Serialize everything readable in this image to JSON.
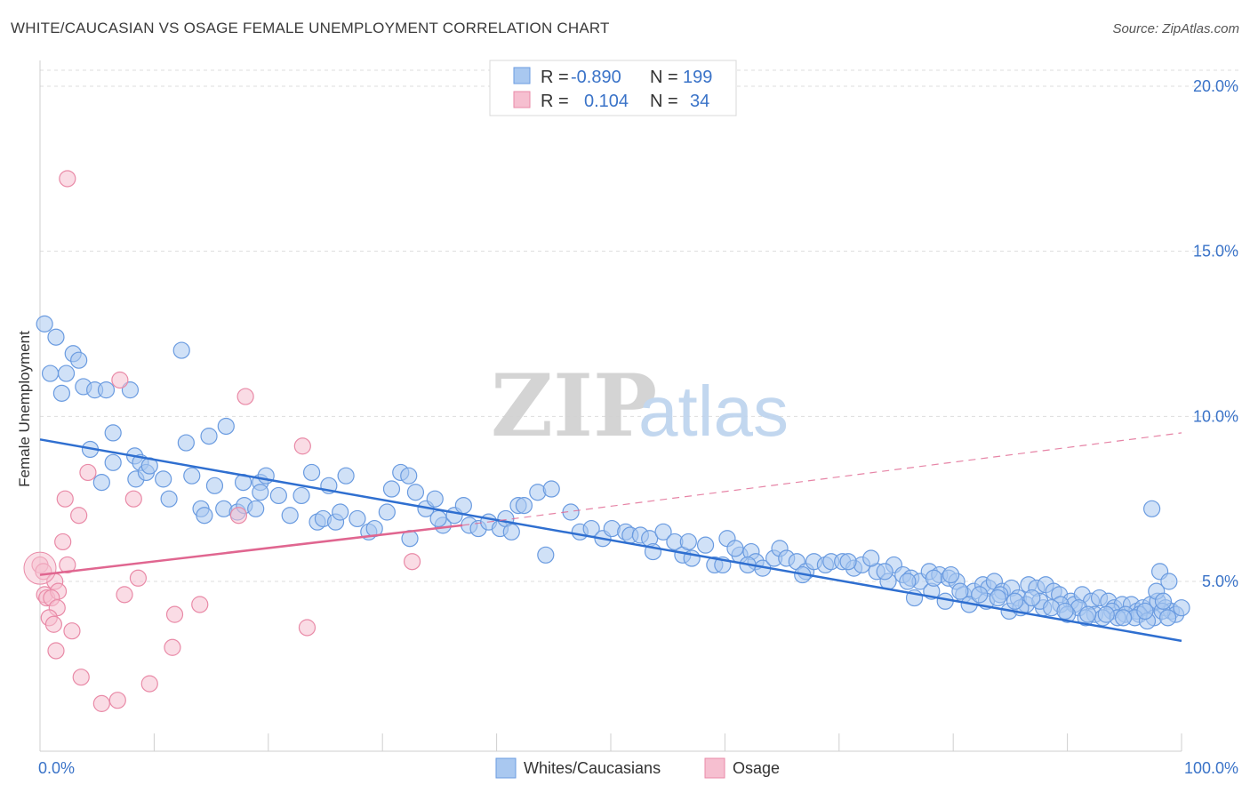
{
  "title": "WHITE/CAUCASIAN VS OSAGE FEMALE UNEMPLOYMENT CORRELATION CHART",
  "source": "Source: ZipAtlas.com",
  "watermark": {
    "zip": "ZIP",
    "atlas": "atlas"
  },
  "colors": {
    "blue_fill": "#a9c8f0",
    "blue_stroke": "#6a9be0",
    "blue_line": "#2f6fd0",
    "pink_fill": "#f6bfd0",
    "pink_stroke": "#e98aa7",
    "pink_line": "#e06690",
    "tick_text": "#3a73c8",
    "grid": "#dddddd"
  },
  "legend_top": {
    "rows": [
      {
        "r_label": "R =",
        "r_value": "-0.890",
        "n_label": "N =",
        "n_value": "199"
      },
      {
        "r_label": "R =",
        "r_value": "0.104",
        "n_label": "N =",
        "n_value": "34"
      }
    ]
  },
  "legend_bottom": {
    "items": [
      "Whites/Caucasians",
      "Osage"
    ]
  },
  "chart_data": {
    "type": "scatter",
    "title": "WHITE/CAUCASIAN VS OSAGE FEMALE UNEMPLOYMENT CORRELATION CHART",
    "xlabel": "",
    "ylabel": "Female Unemployment",
    "xlim": [
      0,
      100
    ],
    "ylim": [
      0,
      20.5
    ],
    "x_tick_labels": [
      "0.0%",
      "100.0%"
    ],
    "y_ticks": [
      5,
      10,
      15,
      20
    ],
    "y_tick_labels": [
      "5.0%",
      "10.0%",
      "15.0%",
      "20.0%"
    ],
    "grid": true,
    "legend_position": "top-center",
    "series": [
      {
        "name": "Whites/Caucasians",
        "r": -0.89,
        "n": 199,
        "trend": {
          "x": [
            0,
            100
          ],
          "y": [
            9.3,
            3.2
          ]
        },
        "points": [
          [
            0.4,
            12.8
          ],
          [
            1.4,
            12.4
          ],
          [
            2.9,
            11.9
          ],
          [
            3.4,
            11.7
          ],
          [
            0.9,
            11.3
          ],
          [
            2.3,
            11.3
          ],
          [
            3.8,
            10.9
          ],
          [
            4.8,
            10.8
          ],
          [
            5.8,
            10.8
          ],
          [
            7.9,
            10.8
          ],
          [
            1.9,
            10.7
          ],
          [
            12.4,
            12.0
          ],
          [
            4.4,
            9.0
          ],
          [
            6.4,
            9.5
          ],
          [
            8.3,
            8.8
          ],
          [
            8.8,
            8.6
          ],
          [
            12.8,
            9.2
          ],
          [
            14.8,
            9.4
          ],
          [
            16.3,
            9.7
          ],
          [
            5.4,
            8.0
          ],
          [
            6.4,
            8.6
          ],
          [
            8.4,
            8.1
          ],
          [
            9.3,
            8.3
          ],
          [
            9.6,
            8.5
          ],
          [
            10.8,
            8.1
          ],
          [
            11.3,
            7.5
          ],
          [
            13.3,
            8.2
          ],
          [
            15.3,
            7.9
          ],
          [
            17.8,
            8.0
          ],
          [
            19.3,
            8.0
          ],
          [
            19.8,
            8.2
          ],
          [
            23.8,
            8.3
          ],
          [
            25.3,
            7.9
          ],
          [
            26.8,
            8.2
          ],
          [
            14.1,
            7.2
          ],
          [
            14.4,
            7.0
          ],
          [
            16.1,
            7.2
          ],
          [
            17.3,
            7.1
          ],
          [
            17.9,
            7.3
          ],
          [
            18.9,
            7.2
          ],
          [
            19.3,
            7.7
          ],
          [
            20.9,
            7.6
          ],
          [
            21.9,
            7.0
          ],
          [
            22.9,
            7.6
          ],
          [
            24.3,
            6.8
          ],
          [
            24.8,
            6.9
          ],
          [
            25.9,
            6.8
          ],
          [
            26.3,
            7.1
          ],
          [
            27.8,
            6.9
          ],
          [
            28.8,
            6.5
          ],
          [
            29.3,
            6.6
          ],
          [
            30.4,
            7.1
          ],
          [
            30.8,
            7.8
          ],
          [
            31.6,
            8.3
          ],
          [
            32.3,
            8.2
          ],
          [
            32.9,
            7.7
          ],
          [
            33.8,
            7.2
          ],
          [
            34.6,
            7.5
          ],
          [
            35.3,
            6.7
          ],
          [
            36.3,
            7.0
          ],
          [
            37.1,
            7.3
          ],
          [
            37.6,
            6.7
          ],
          [
            38.4,
            6.6
          ],
          [
            39.3,
            6.8
          ],
          [
            40.3,
            6.6
          ],
          [
            40.8,
            6.9
          ],
          [
            41.3,
            6.5
          ],
          [
            41.9,
            7.3
          ],
          [
            42.4,
            7.3
          ],
          [
            43.6,
            7.7
          ],
          [
            44.8,
            7.8
          ],
          [
            46.5,
            7.1
          ],
          [
            47.3,
            6.5
          ],
          [
            48.3,
            6.6
          ],
          [
            49.3,
            6.3
          ],
          [
            50.1,
            6.6
          ],
          [
            51.3,
            6.5
          ],
          [
            51.7,
            6.4
          ],
          [
            52.6,
            6.4
          ],
          [
            53.4,
            6.3
          ],
          [
            53.7,
            5.9
          ],
          [
            54.6,
            6.5
          ],
          [
            55.6,
            6.2
          ],
          [
            56.3,
            5.8
          ],
          [
            57.1,
            5.7
          ],
          [
            58.3,
            6.1
          ],
          [
            59.1,
            5.5
          ],
          [
            60.2,
            6.3
          ],
          [
            61.3,
            5.8
          ],
          [
            62.3,
            5.9
          ],
          [
            62.7,
            5.6
          ],
          [
            63.3,
            5.4
          ],
          [
            64.3,
            5.7
          ],
          [
            64.8,
            6.0
          ],
          [
            65.4,
            5.7
          ],
          [
            66.3,
            5.6
          ],
          [
            67.1,
            5.3
          ],
          [
            67.8,
            5.6
          ],
          [
            68.8,
            5.5
          ],
          [
            69.3,
            5.6
          ],
          [
            70.3,
            5.6
          ],
          [
            71.3,
            5.4
          ],
          [
            72.0,
            5.5
          ],
          [
            73.3,
            5.3
          ],
          [
            74.3,
            5.0
          ],
          [
            74.8,
            5.5
          ],
          [
            75.6,
            5.2
          ],
          [
            76.3,
            5.1
          ],
          [
            77.1,
            5.0
          ],
          [
            77.9,
            5.3
          ],
          [
            78.8,
            5.2
          ],
          [
            79.6,
            5.1
          ],
          [
            80.3,
            5.0
          ],
          [
            80.9,
            4.6
          ],
          [
            81.8,
            4.7
          ],
          [
            82.6,
            4.9
          ],
          [
            83.1,
            4.8
          ],
          [
            83.6,
            5.0
          ],
          [
            84.3,
            4.7
          ],
          [
            85.1,
            4.8
          ],
          [
            85.7,
            4.5
          ],
          [
            86.6,
            4.9
          ],
          [
            87.3,
            4.8
          ],
          [
            88.1,
            4.9
          ],
          [
            88.8,
            4.7
          ],
          [
            89.3,
            4.6
          ],
          [
            90.3,
            4.4
          ],
          [
            90.6,
            4.3
          ],
          [
            91.3,
            4.6
          ],
          [
            92.1,
            4.4
          ],
          [
            92.8,
            4.5
          ],
          [
            93.6,
            4.4
          ],
          [
            94.1,
            4.2
          ],
          [
            94.8,
            4.3
          ],
          [
            95.6,
            4.3
          ],
          [
            96.1,
            4.1
          ],
          [
            96.6,
            4.2
          ],
          [
            97.3,
            4.3
          ],
          [
            97.9,
            4.4
          ],
          [
            98.6,
            4.2
          ],
          [
            99.1,
            4.1
          ],
          [
            99.5,
            4.0
          ],
          [
            100.0,
            4.2
          ],
          [
            84.9,
            4.1
          ],
          [
            86.4,
            4.3
          ],
          [
            87.9,
            4.2
          ],
          [
            89.4,
            4.3
          ],
          [
            91.0,
            4.2
          ],
          [
            92.4,
            4.0
          ],
          [
            93.9,
            4.1
          ],
          [
            95.1,
            4.0
          ],
          [
            96.3,
            4.0
          ],
          [
            97.6,
            3.9
          ],
          [
            98.3,
            4.1
          ],
          [
            81.4,
            4.3
          ],
          [
            82.9,
            4.4
          ],
          [
            84.1,
            4.6
          ],
          [
            85.9,
            4.2
          ],
          [
            87.6,
            4.4
          ],
          [
            88.6,
            4.2
          ],
          [
            90.0,
            4.0
          ],
          [
            91.6,
            3.9
          ],
          [
            93.1,
            3.9
          ],
          [
            94.4,
            3.9
          ],
          [
            95.9,
            3.9
          ],
          [
            97.0,
            3.8
          ],
          [
            98.8,
            3.9
          ],
          [
            89.8,
            4.1
          ],
          [
            91.8,
            4.0
          ],
          [
            93.4,
            4.0
          ],
          [
            94.9,
            3.9
          ],
          [
            96.8,
            4.1
          ],
          [
            76.6,
            4.5
          ],
          [
            78.1,
            4.7
          ],
          [
            79.3,
            4.4
          ],
          [
            80.6,
            4.7
          ],
          [
            82.3,
            4.6
          ],
          [
            83.9,
            4.5
          ],
          [
            85.4,
            4.4
          ],
          [
            86.9,
            4.5
          ],
          [
            72.8,
            5.7
          ],
          [
            74.0,
            5.3
          ],
          [
            76.0,
            5.0
          ],
          [
            78.3,
            5.1
          ],
          [
            79.8,
            5.2
          ],
          [
            97.4,
            7.2
          ],
          [
            98.1,
            5.3
          ],
          [
            98.9,
            5.0
          ],
          [
            97.8,
            4.7
          ],
          [
            98.4,
            4.4
          ],
          [
            32.4,
            6.3
          ],
          [
            34.9,
            6.9
          ],
          [
            44.3,
            5.8
          ],
          [
            56.8,
            6.2
          ],
          [
            59.8,
            5.5
          ],
          [
            62.0,
            5.5
          ],
          [
            66.8,
            5.2
          ],
          [
            60.9,
            6.0
          ],
          [
            70.8,
            5.6
          ]
        ]
      },
      {
        "name": "Osage",
        "r": 0.104,
        "n": 34,
        "trend": {
          "x": [
            0,
            37
          ],
          "y": [
            5.2,
            6.7
          ]
        },
        "trend_extension": {
          "x": [
            37,
            100
          ],
          "y": [
            6.7,
            9.5
          ]
        },
        "points": [
          [
            2.4,
            17.2
          ],
          [
            7.0,
            11.1
          ],
          [
            18.0,
            10.6
          ],
          [
            23.0,
            9.1
          ],
          [
            4.2,
            8.3
          ],
          [
            2.2,
            7.5
          ],
          [
            8.2,
            7.5
          ],
          [
            3.4,
            7.0
          ],
          [
            17.4,
            7.0
          ],
          [
            2.0,
            6.2
          ],
          [
            0.0,
            5.5
          ],
          [
            0.3,
            5.3
          ],
          [
            2.4,
            5.5
          ],
          [
            1.3,
            5.0
          ],
          [
            8.6,
            5.1
          ],
          [
            0.4,
            4.6
          ],
          [
            0.6,
            4.5
          ],
          [
            1.6,
            4.7
          ],
          [
            7.4,
            4.6
          ],
          [
            1.0,
            4.5
          ],
          [
            1.5,
            4.2
          ],
          [
            14.0,
            4.3
          ],
          [
            11.8,
            4.0
          ],
          [
            0.8,
            3.9
          ],
          [
            1.2,
            3.7
          ],
          [
            2.8,
            3.5
          ],
          [
            23.4,
            3.6
          ],
          [
            32.6,
            5.6
          ],
          [
            1.4,
            2.9
          ],
          [
            11.6,
            3.0
          ],
          [
            3.6,
            2.1
          ],
          [
            9.6,
            1.9
          ],
          [
            5.4,
            1.3
          ],
          [
            6.8,
            1.4
          ]
        ]
      }
    ]
  }
}
